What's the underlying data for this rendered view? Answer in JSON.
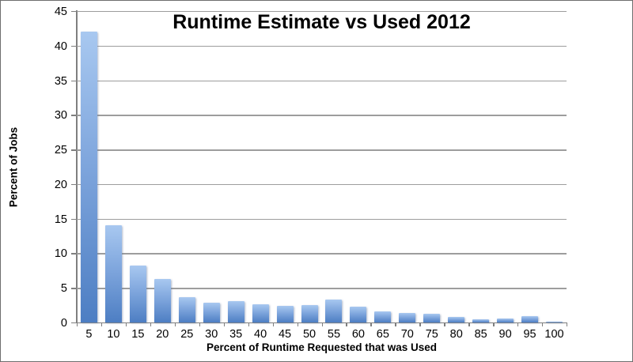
{
  "chart_data": {
    "type": "bar",
    "title": "Runtime Estimate vs Used 2012",
    "xlabel": "Percent of Runtime Requested that was Used",
    "ylabel": "Percent of Jobs",
    "categories": [
      "5",
      "10",
      "15",
      "20",
      "25",
      "30",
      "35",
      "40",
      "45",
      "50",
      "55",
      "60",
      "65",
      "70",
      "75",
      "80",
      "85",
      "90",
      "95",
      "100"
    ],
    "values": [
      42,
      14,
      8.2,
      6.3,
      3.7,
      2.8,
      3.1,
      2.6,
      2.4,
      2.5,
      3.3,
      2.3,
      1.6,
      1.4,
      1.2,
      0.8,
      0.5,
      0.6,
      0.9,
      0.15
    ],
    "ylim": [
      0,
      45
    ],
    "ytick_step": 5,
    "grid": true,
    "legend": false,
    "colors": {
      "bar_gradient_top": "#a8c8f0",
      "bar_gradient_bottom": "#4d7ec3",
      "gridline": "#9d9d9d",
      "axis": "#7f7f7f",
      "text": "#000000",
      "background": "#ffffff",
      "border": "#6e6e6e"
    }
  }
}
